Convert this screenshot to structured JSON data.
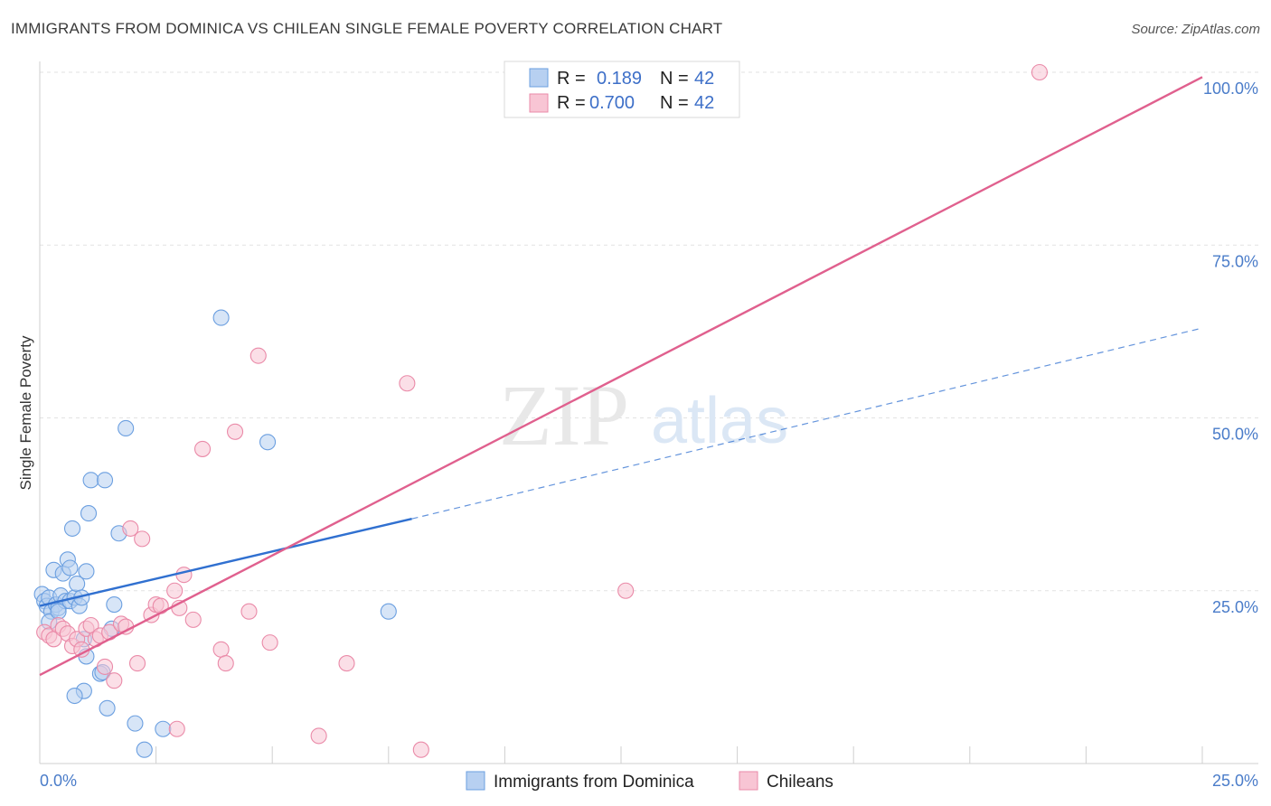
{
  "chart_data": {
    "type": "scatter",
    "title": "IMMIGRANTS FROM DOMINICA VS CHILEAN SINGLE FEMALE POVERTY CORRELATION CHART",
    "source": "Source: ZipAtlas.com",
    "ylabel": "Single Female Poverty",
    "xlim": [
      0,
      25
    ],
    "ylim": [
      0,
      100
    ],
    "y_ticks": [
      {
        "value": 25,
        "label": "25.0%"
      },
      {
        "value": 50,
        "label": "50.0%"
      },
      {
        "value": 75,
        "label": "75.0%"
      },
      {
        "value": 100,
        "label": "100.0%"
      }
    ],
    "x_tick_labels": {
      "min": "0.0%",
      "max": "25.0%"
    },
    "watermark": {
      "zip": "ZIP",
      "atlas": "atlas"
    },
    "legend": {
      "rows": [
        {
          "r_label": "R =",
          "r_value": "0.189",
          "n_label": "N =",
          "n_value": "42",
          "color": "#a8c8f0"
        },
        {
          "r_label": "R =",
          "r_value": "0.700",
          "n_label": "N =",
          "n_value": "42",
          "color": "#f5b8cb"
        }
      ]
    },
    "series": [
      {
        "name": "Immigrants from Dominica",
        "color": "#6b9fe0",
        "fill": "#b7d0f1",
        "trend": {
          "x0": 0,
          "y0": 22.8,
          "x1": 8.0,
          "y1": 35.4,
          "dash_x1": 25,
          "dash_y1": 63.0,
          "color": "#3070d0"
        },
        "points": [
          [
            0.05,
            24.5
          ],
          [
            0.1,
            23.5
          ],
          [
            0.15,
            22.8
          ],
          [
            0.2,
            24.0
          ],
          [
            0.25,
            22.0
          ],
          [
            0.3,
            28.0
          ],
          [
            0.35,
            23.0
          ],
          [
            0.4,
            22.5
          ],
          [
            0.45,
            24.3
          ],
          [
            0.5,
            27.5
          ],
          [
            0.55,
            23.5
          ],
          [
            0.6,
            29.5
          ],
          [
            0.65,
            28.3
          ],
          [
            0.65,
            23.5
          ],
          [
            0.7,
            34.0
          ],
          [
            0.75,
            24.0
          ],
          [
            0.8,
            26.0
          ],
          [
            0.85,
            22.8
          ],
          [
            0.9,
            24.0
          ],
          [
            0.95,
            18.0
          ],
          [
            0.95,
            10.5
          ],
          [
            1.0,
            27.8
          ],
          [
            1.0,
            15.5
          ],
          [
            0.75,
            9.8
          ],
          [
            1.05,
            36.2
          ],
          [
            1.1,
            41.0
          ],
          [
            1.3,
            13.0
          ],
          [
            1.35,
            13.2
          ],
          [
            1.4,
            41.0
          ],
          [
            1.45,
            8.0
          ],
          [
            1.55,
            19.5
          ],
          [
            1.6,
            23.0
          ],
          [
            1.7,
            33.3
          ],
          [
            1.85,
            48.5
          ],
          [
            2.05,
            5.8
          ],
          [
            2.25,
            2.0
          ],
          [
            2.65,
            5.0
          ],
          [
            3.9,
            64.5
          ],
          [
            4.9,
            46.5
          ],
          [
            7.5,
            22.0
          ],
          [
            0.2,
            20.5
          ],
          [
            0.4,
            22.0
          ]
        ]
      },
      {
        "name": "Chileans",
        "color": "#ea8aa8",
        "fill": "#f8c5d4",
        "trend": {
          "x0": 0,
          "y0": 12.8,
          "x1": 25,
          "y1": 99.3,
          "color": "#e0608e"
        },
        "points": [
          [
            0.1,
            19.0
          ],
          [
            0.2,
            18.5
          ],
          [
            0.3,
            18.0
          ],
          [
            0.4,
            20.0
          ],
          [
            0.5,
            19.5
          ],
          [
            0.6,
            18.8
          ],
          [
            0.7,
            17.0
          ],
          [
            0.8,
            18.0
          ],
          [
            0.9,
            16.5
          ],
          [
            1.0,
            19.5
          ],
          [
            1.1,
            20.0
          ],
          [
            1.2,
            18.0
          ],
          [
            1.3,
            18.5
          ],
          [
            1.4,
            14.0
          ],
          [
            1.5,
            19.0
          ],
          [
            1.6,
            12.0
          ],
          [
            1.75,
            20.2
          ],
          [
            1.85,
            19.8
          ],
          [
            1.95,
            34.0
          ],
          [
            2.1,
            14.5
          ],
          [
            2.2,
            32.5
          ],
          [
            2.4,
            21.5
          ],
          [
            2.5,
            23.0
          ],
          [
            2.6,
            22.8
          ],
          [
            2.9,
            25.0
          ],
          [
            3.0,
            22.5
          ],
          [
            3.1,
            27.3
          ],
          [
            3.3,
            20.8
          ],
          [
            3.5,
            45.5
          ],
          [
            3.9,
            16.5
          ],
          [
            4.0,
            14.5
          ],
          [
            4.2,
            48.0
          ],
          [
            4.5,
            22.0
          ],
          [
            4.7,
            59.0
          ],
          [
            4.95,
            17.5
          ],
          [
            6.0,
            4.0
          ],
          [
            6.6,
            14.5
          ],
          [
            7.9,
            55.0
          ],
          [
            8.2,
            2.0
          ],
          [
            12.6,
            25.0
          ],
          [
            21.5,
            100.0
          ],
          [
            2.95,
            5.0
          ]
        ]
      }
    ]
  }
}
